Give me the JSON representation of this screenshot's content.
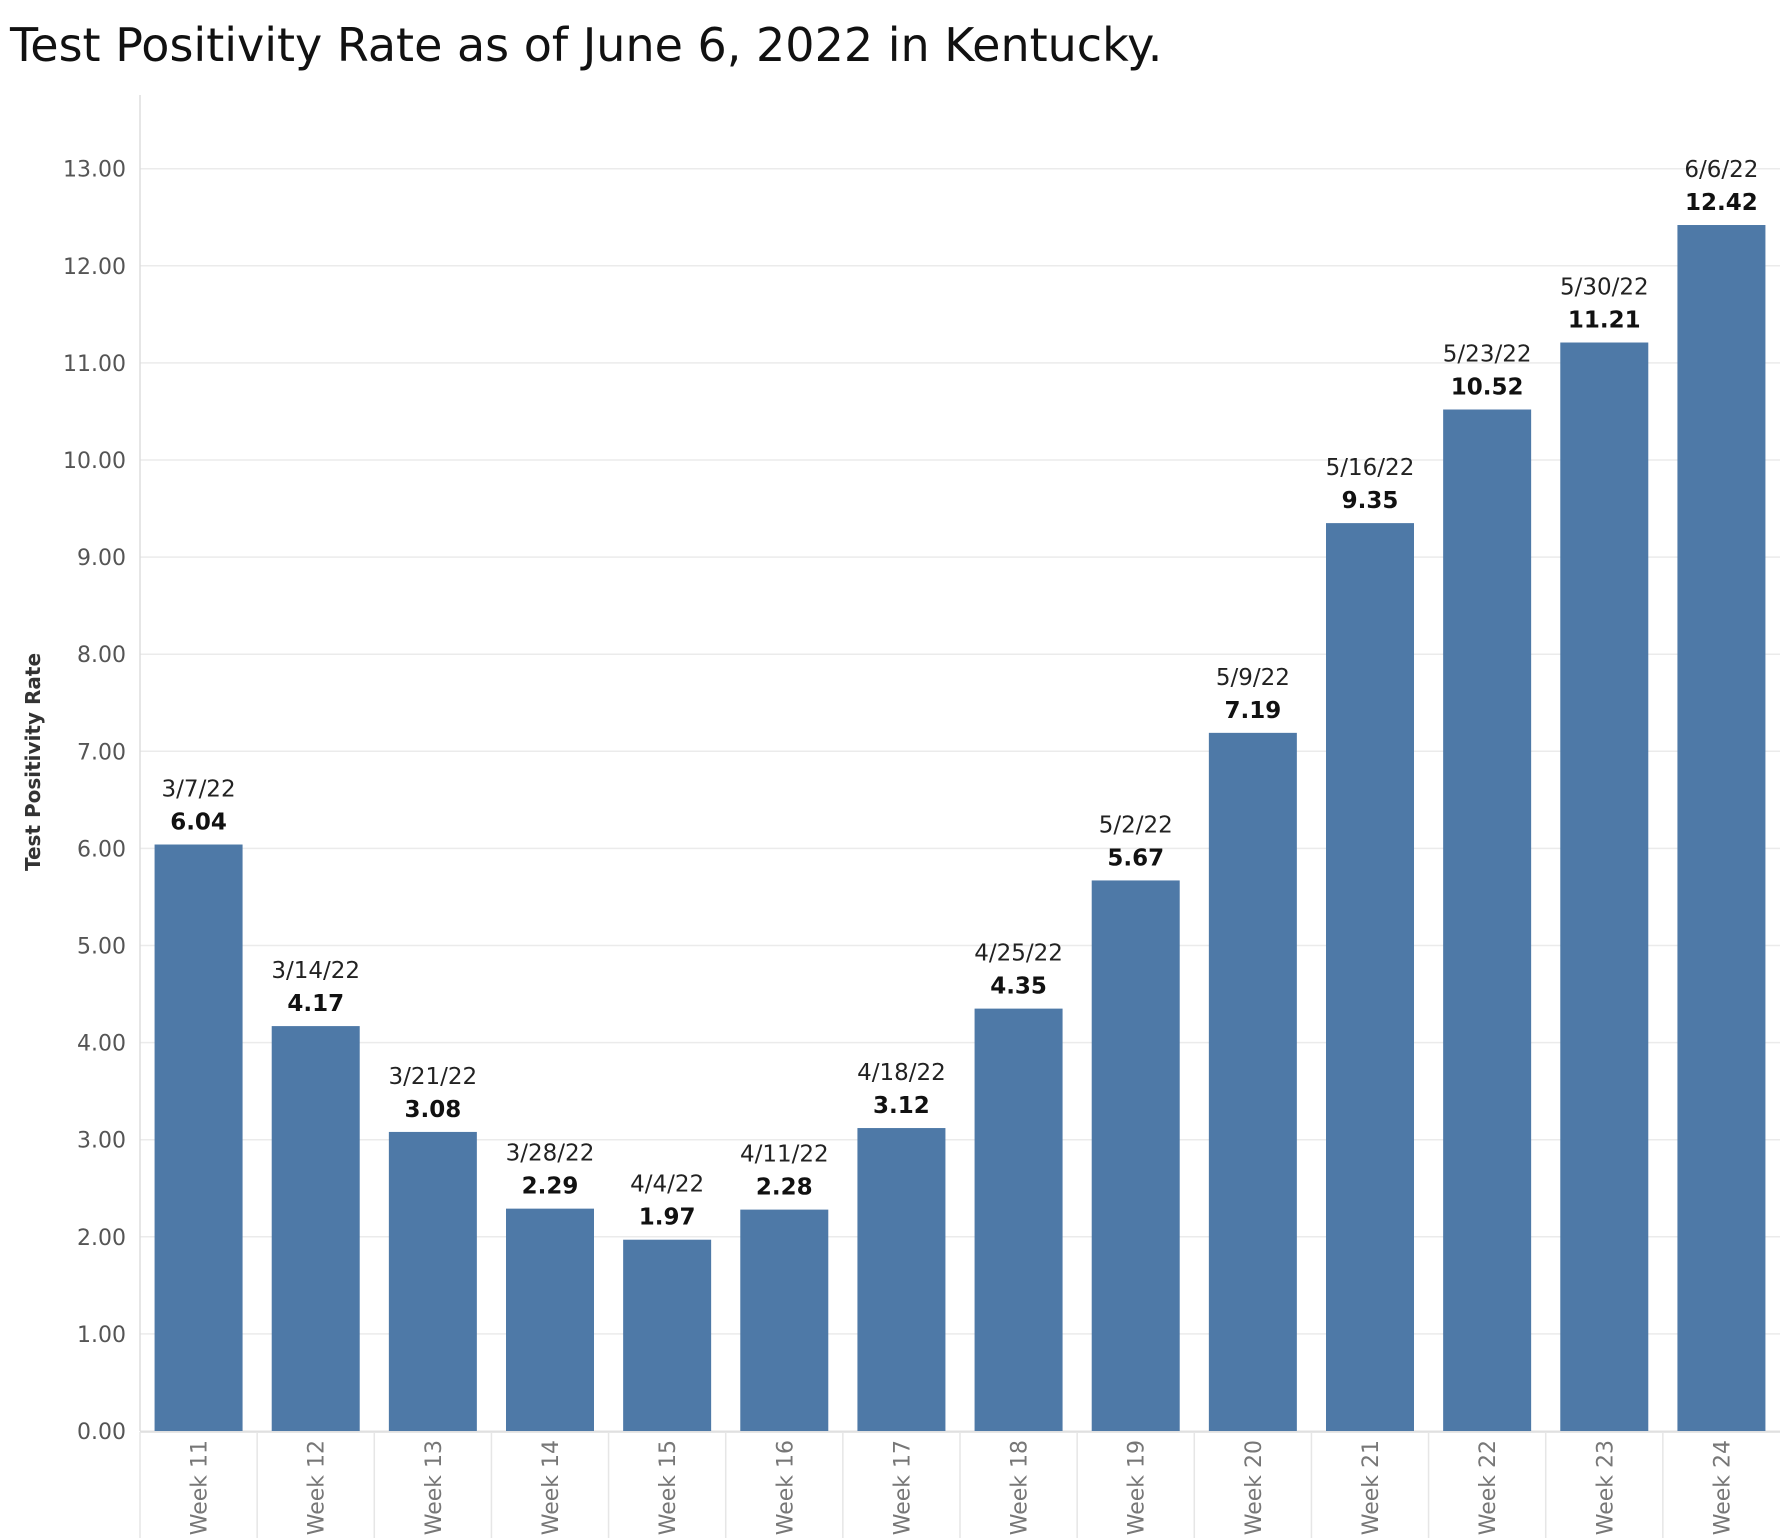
{
  "chart_data": {
    "type": "bar",
    "title": "Test Positivity Rate as of June 6, 2022 in Kentucky.",
    "ylabel": "Test Positivity Rate",
    "xlabel": "",
    "ylim": [
      0,
      13.75
    ],
    "yticks": [
      "0.00",
      "1.00",
      "2.00",
      "3.00",
      "4.00",
      "5.00",
      "6.00",
      "7.00",
      "8.00",
      "9.00",
      "10.00",
      "11.00",
      "12.00",
      "13.00"
    ],
    "grid": true,
    "bar_color": "#4e79a7",
    "categories": [
      "Week 11",
      "Week 12",
      "Week 13",
      "Week 14",
      "Week 15",
      "Week 16",
      "Week 17",
      "Week 18",
      "Week 19",
      "Week 20",
      "Week 21",
      "Week 22",
      "Week 23",
      "Week 24"
    ],
    "dates": [
      "3/7/22",
      "3/14/22",
      "3/21/22",
      "3/28/22",
      "4/4/22",
      "4/11/22",
      "4/18/22",
      "4/25/22",
      "5/2/22",
      "5/9/22",
      "5/16/22",
      "5/23/22",
      "5/30/22",
      "6/6/22"
    ],
    "values": [
      6.04,
      4.17,
      3.08,
      2.29,
      1.97,
      2.28,
      3.12,
      4.35,
      5.67,
      7.19,
      9.35,
      10.52,
      11.21,
      12.42
    ],
    "value_labels": [
      "6.04",
      "4.17",
      "3.08",
      "2.29",
      "1.97",
      "2.28",
      "3.12",
      "4.35",
      "5.67",
      "7.19",
      "9.35",
      "10.52",
      "11.21",
      "12.42"
    ]
  }
}
